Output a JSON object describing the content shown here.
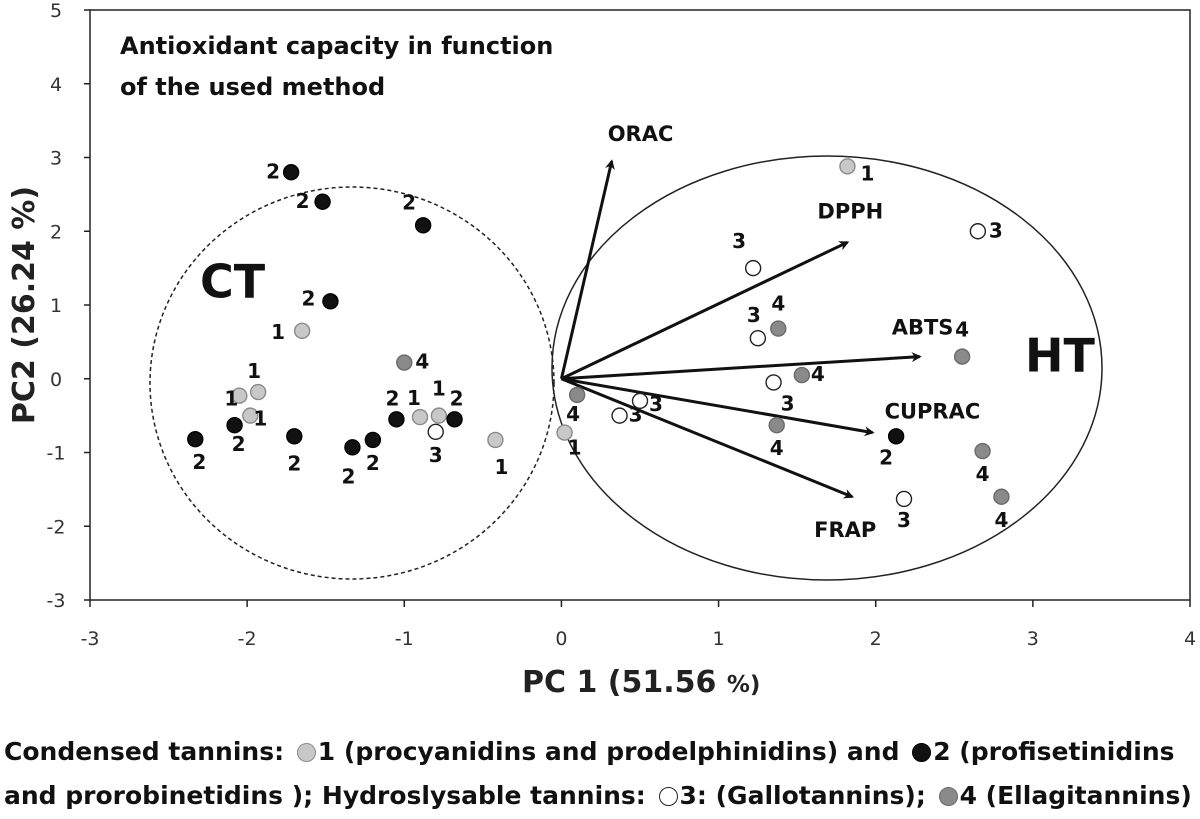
{
  "chart_data": {
    "type": "scatter",
    "title_lines": [
      "Antioxidant capacity in function",
      "of the used method"
    ],
    "xlabel": "PC 1 (51.56",
    "xlabel_unit": "%)",
    "ylabel": "PC2 (26.24 %)",
    "xlim": [
      -3,
      4
    ],
    "ylim": [
      -3,
      5
    ],
    "x_ticks": [
      "-3",
      "-2",
      "-1",
      "0",
      "1",
      "2",
      "3",
      "4"
    ],
    "y_ticks": [
      "-3",
      "-2",
      "-1",
      "0",
      "1",
      "2",
      "3",
      "4",
      "5"
    ],
    "group_labels": [
      {
        "text": "CT",
        "x": -2.3,
        "y": 1.1
      },
      {
        "text": "HT",
        "x": 2.95,
        "y": 0.1
      }
    ],
    "colors": {
      "g1": "#c8c8c8",
      "g2": "#111111",
      "g3": "#ffffff",
      "g4": "#8a8a8a"
    },
    "vectors": [
      {
        "name": "ORAC",
        "x": 0.32,
        "y": 2.95
      },
      {
        "name": "DPPH",
        "x": 1.82,
        "y": 1.85
      },
      {
        "name": "ABTS",
        "x": 2.28,
        "y": 0.3
      },
      {
        "name": "CUPRAC",
        "x": 1.98,
        "y": -0.73
      },
      {
        "name": "FRAP",
        "x": 1.85,
        "y": -1.6
      }
    ],
    "points": [
      {
        "group": 1,
        "x": -1.65,
        "y": 0.65,
        "label": "1"
      },
      {
        "group": 1,
        "x": -2.05,
        "y": -0.23,
        "label": "1"
      },
      {
        "group": 1,
        "x": -1.93,
        "y": -0.18,
        "label": "1"
      },
      {
        "group": 1,
        "x": -1.98,
        "y": -0.5,
        "label": "1"
      },
      {
        "group": 1,
        "x": -0.9,
        "y": -0.52,
        "label": "1"
      },
      {
        "group": 1,
        "x": -0.78,
        "y": -0.5,
        "label": "1"
      },
      {
        "group": 1,
        "x": -0.42,
        "y": -0.83,
        "label": "1"
      },
      {
        "group": 1,
        "x": 0.02,
        "y": -0.73,
        "label": "1"
      },
      {
        "group": 1,
        "x": 1.82,
        "y": 2.88,
        "label": "1"
      },
      {
        "group": 2,
        "x": -1.72,
        "y": 2.8,
        "label": "2"
      },
      {
        "group": 2,
        "x": -1.52,
        "y": 2.4,
        "label": "2"
      },
      {
        "group": 2,
        "x": -0.88,
        "y": 2.08,
        "label": "2"
      },
      {
        "group": 2,
        "x": -1.47,
        "y": 1.05,
        "label": "2"
      },
      {
        "group": 2,
        "x": -2.33,
        "y": -0.82,
        "label": "2"
      },
      {
        "group": 2,
        "x": -2.08,
        "y": -0.63,
        "label": "2"
      },
      {
        "group": 2,
        "x": -1.7,
        "y": -0.78,
        "label": "2"
      },
      {
        "group": 2,
        "x": -1.33,
        "y": -0.93,
        "label": "2"
      },
      {
        "group": 2,
        "x": -1.2,
        "y": -0.83,
        "label": "2"
      },
      {
        "group": 2,
        "x": -1.05,
        "y": -0.55,
        "label": "2"
      },
      {
        "group": 2,
        "x": -0.68,
        "y": -0.55,
        "label": "2"
      },
      {
        "group": 2,
        "x": 2.13,
        "y": -0.78,
        "label": "2"
      },
      {
        "group": 3,
        "x": -0.8,
        "y": -0.72,
        "label": "3"
      },
      {
        "group": 3,
        "x": 0.37,
        "y": -0.5,
        "label": "3"
      },
      {
        "group": 3,
        "x": 0.5,
        "y": -0.3,
        "label": "3"
      },
      {
        "group": 3,
        "x": 1.22,
        "y": 1.5,
        "label": "3"
      },
      {
        "group": 3,
        "x": 1.25,
        "y": 0.55,
        "label": "3"
      },
      {
        "group": 3,
        "x": 1.35,
        "y": -0.05,
        "label": "3"
      },
      {
        "group": 3,
        "x": 2.65,
        "y": 2.0,
        "label": "3"
      },
      {
        "group": 3,
        "x": 2.18,
        "y": -1.63,
        "label": "3"
      },
      {
        "group": 4,
        "x": -1.0,
        "y": 0.22,
        "label": "4"
      },
      {
        "group": 4,
        "x": 0.1,
        "y": -0.22,
        "label": "4"
      },
      {
        "group": 4,
        "x": 1.38,
        "y": 0.68,
        "label": "4"
      },
      {
        "group": 4,
        "x": 1.53,
        "y": 0.05,
        "label": "4"
      },
      {
        "group": 4,
        "x": 1.37,
        "y": -0.63,
        "label": "4"
      },
      {
        "group": 4,
        "x": 2.55,
        "y": 0.3,
        "label": "4"
      },
      {
        "group": 4,
        "x": 2.68,
        "y": -0.98,
        "label": "4"
      },
      {
        "group": 4,
        "x": 2.8,
        "y": -1.6,
        "label": "4"
      }
    ],
    "grid": false
  },
  "legend": {
    "ct_heading": "Condensed tannins:",
    "g1_text": "1 (procyanidins and prodelphinidins) and",
    "g2_text_a": "2 (profisetinidins",
    "g2_text_b": "and prorobinetidins );",
    "ht_heading": "Hydroslysable tannins:",
    "g3_text": "3: (Gallotannins);",
    "g4_text": "4 (Ellagitannins)"
  }
}
